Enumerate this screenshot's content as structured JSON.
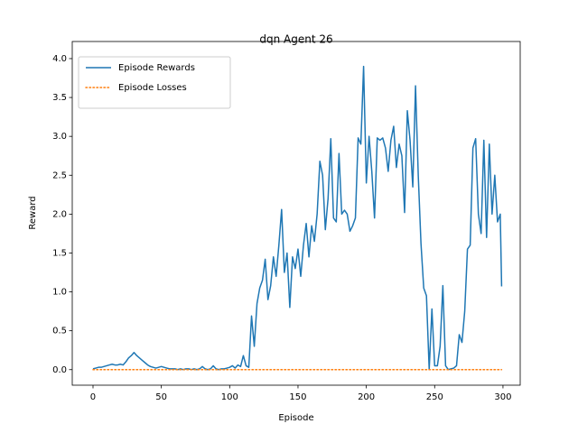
{
  "chart_data": {
    "type": "line",
    "title": "dqn Agent 26",
    "xlabel": "Episode",
    "ylabel": "Reward",
    "x": [
      0,
      2,
      4,
      6,
      8,
      10,
      12,
      14,
      16,
      18,
      20,
      22,
      24,
      26,
      28,
      30,
      32,
      34,
      36,
      38,
      40,
      42,
      44,
      46,
      48,
      50,
      52,
      54,
      56,
      58,
      60,
      62,
      64,
      66,
      68,
      70,
      72,
      74,
      76,
      78,
      80,
      82,
      84,
      86,
      88,
      90,
      92,
      94,
      96,
      98,
      100,
      102,
      104,
      106,
      108,
      110,
      112,
      114,
      116,
      118,
      120,
      122,
      124,
      126,
      128,
      130,
      132,
      134,
      136,
      138,
      140,
      142,
      144,
      146,
      148,
      150,
      152,
      154,
      156,
      158,
      160,
      162,
      164,
      166,
      168,
      170,
      172,
      174,
      176,
      178,
      180,
      182,
      184,
      186,
      188,
      190,
      192,
      194,
      196,
      198,
      200,
      202,
      204,
      206,
      208,
      210,
      212,
      214,
      216,
      218,
      220,
      222,
      224,
      226,
      228,
      230,
      232,
      234,
      236,
      238,
      240,
      242,
      244,
      246,
      248,
      250,
      252,
      254,
      256,
      258,
      260,
      262,
      264,
      266,
      268,
      270,
      272,
      274,
      276,
      278,
      280,
      282,
      284,
      286,
      288,
      290,
      292,
      294,
      296,
      298,
      299
    ],
    "series": [
      {
        "name": "Episode Rewards",
        "color": "#1f77b4",
        "style": "solid",
        "values": [
          0.01,
          0.02,
          0.03,
          0.03,
          0.04,
          0.05,
          0.06,
          0.07,
          0.06,
          0.06,
          0.07,
          0.06,
          0.1,
          0.15,
          0.18,
          0.22,
          0.18,
          0.15,
          0.12,
          0.09,
          0.06,
          0.04,
          0.03,
          0.02,
          0.03,
          0.04,
          0.03,
          0.02,
          0.01,
          0.01,
          0.01,
          0,
          0.01,
          0,
          0.01,
          0.01,
          0,
          0.01,
          0,
          0.01,
          0.04,
          0.01,
          0,
          0.01,
          0.05,
          0.01,
          0,
          0.01,
          0.01,
          0.02,
          0.03,
          0.05,
          0.02,
          0.06,
          0.04,
          0.18,
          0.05,
          0.03,
          0.69,
          0.3,
          0.85,
          1.05,
          1.15,
          1.42,
          0.9,
          1.08,
          1.45,
          1.2,
          1.6,
          2.06,
          1.25,
          1.5,
          0.8,
          1.45,
          1.3,
          1.55,
          1.2,
          1.6,
          1.88,
          1.45,
          1.85,
          1.65,
          2.0,
          2.68,
          2.5,
          1.8,
          2.2,
          2.97,
          1.95,
          1.9,
          2.78,
          2.0,
          2.05,
          2.0,
          1.78,
          1.85,
          1.95,
          2.98,
          2.9,
          3.9,
          2.4,
          3.0,
          2.55,
          1.95,
          2.98,
          2.95,
          2.98,
          2.85,
          2.55,
          2.95,
          3.13,
          2.6,
          2.9,
          2.75,
          2.02,
          3.33,
          2.95,
          2.35,
          3.65,
          2.5,
          1.62,
          1.05,
          0.95,
          0,
          0.78,
          0.05,
          0.05,
          0.3,
          1.08,
          0.05,
          0,
          0.01,
          0.02,
          0.05,
          0.45,
          0.35,
          0.75,
          1.55,
          1.6,
          2.85,
          2.97,
          2.0,
          1.75,
          2.95,
          1.7,
          2.9,
          2.0,
          2.5,
          1.9,
          2.0,
          1.07
        ]
      },
      {
        "name": "Episode Losses",
        "color": "#ff7f0e",
        "style": "dotted",
        "values": [
          0,
          0,
          0,
          0,
          0,
          0,
          0,
          0,
          0,
          0,
          0,
          0,
          0,
          0,
          0,
          0,
          0,
          0,
          0,
          0,
          0,
          0,
          0,
          0,
          0,
          0,
          0,
          0,
          0,
          0,
          0,
          0,
          0,
          0,
          0,
          0,
          0,
          0,
          0,
          0,
          0,
          0,
          0,
          0,
          0,
          0,
          0,
          0,
          0,
          0,
          0,
          0,
          0,
          0,
          0,
          0,
          0,
          0,
          0,
          0,
          0,
          0,
          0,
          0,
          0,
          0,
          0,
          0,
          0,
          0,
          0,
          0,
          0,
          0,
          0,
          0,
          0,
          0,
          0,
          0,
          0,
          0,
          0,
          0,
          0,
          0,
          0,
          0,
          0,
          0,
          0,
          0,
          0,
          0,
          0,
          0,
          0,
          0,
          0,
          0,
          0,
          0,
          0,
          0,
          0,
          0,
          0,
          0,
          0,
          0,
          0,
          0,
          0,
          0,
          0,
          0,
          0,
          0,
          0,
          0,
          0,
          0,
          0,
          0,
          0,
          0,
          0,
          0,
          0,
          0,
          0,
          0,
          0,
          0,
          0,
          0,
          0,
          0,
          0,
          0,
          0,
          0,
          0,
          0,
          0,
          0,
          0,
          0,
          0,
          0,
          0
        ]
      }
    ],
    "xlim": [
      -15.2,
      312.6
    ],
    "xticks": [
      0,
      50,
      100,
      150,
      200,
      250,
      300
    ],
    "ylim": [
      -0.2,
      4.22
    ],
    "yticks": [
      {
        "value": 0,
        "label": "0.0"
      },
      0.5,
      {
        "value": 1,
        "label": "1.0"
      },
      1.5,
      {
        "value": 2,
        "label": "2.0"
      },
      2.5,
      {
        "value": 3,
        "label": "3.0"
      },
      3.5,
      {
        "value": 4,
        "label": "4.0"
      }
    ],
    "legend": "upper left",
    "grid": false
  }
}
